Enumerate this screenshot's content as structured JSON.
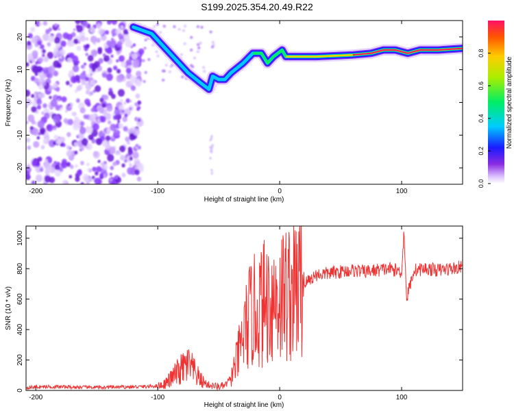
{
  "title": "S199.2025.354.20.49.R22",
  "colors": {
    "snr_line": "#ee3333",
    "axis": "#000000"
  },
  "chart_data": [
    {
      "type": "heatmap",
      "title": "S199.2025.354.20.49.R22",
      "xlabel": "Height of straight line (km)",
      "ylabel": "Frequency (Hz)",
      "xlim": [
        -208,
        150
      ],
      "ylim": [
        -25,
        25
      ],
      "x_ticks": [
        -200,
        -100,
        0,
        100
      ],
      "y_ticks": [
        -20,
        -10,
        0,
        10,
        20
      ],
      "colorbar": {
        "label": "Normalized spectral amplitude",
        "range": [
          0,
          1
        ],
        "ticks": [
          0.0,
          0.2,
          0.4,
          0.6,
          0.8
        ]
      },
      "ridge": [
        {
          "x": -120,
          "f": 23
        },
        {
          "x": -105,
          "f": 21
        },
        {
          "x": -95,
          "f": 17
        },
        {
          "x": -85,
          "f": 13
        },
        {
          "x": -75,
          "f": 9
        },
        {
          "x": -65,
          "f": 6
        },
        {
          "x": -58,
          "f": 4
        },
        {
          "x": -55,
          "f": 8
        },
        {
          "x": -50,
          "f": 7
        },
        {
          "x": -45,
          "f": 7
        },
        {
          "x": -40,
          "f": 9
        },
        {
          "x": -30,
          "f": 12
        },
        {
          "x": -22,
          "f": 15
        },
        {
          "x": -15,
          "f": 15
        },
        {
          "x": -10,
          "f": 12
        },
        {
          "x": -5,
          "f": 14
        },
        {
          "x": 2,
          "f": 16
        },
        {
          "x": 5,
          "f": 14
        },
        {
          "x": 30,
          "f": 14
        },
        {
          "x": 60,
          "f": 14.5
        },
        {
          "x": 75,
          "f": 15
        },
        {
          "x": 85,
          "f": 16
        },
        {
          "x": 95,
          "f": 16
        },
        {
          "x": 105,
          "f": 15
        },
        {
          "x": 115,
          "f": 16
        },
        {
          "x": 130,
          "f": 16
        },
        {
          "x": 150,
          "f": 16.5
        }
      ]
    },
    {
      "type": "line",
      "xlabel": "Height of straight line (km)",
      "ylabel": "SNR (10 * v/v)",
      "xlim": [
        -208,
        150
      ],
      "ylim": [
        0,
        1080
      ],
      "x_ticks": [
        -200,
        -100,
        0,
        100
      ],
      "y_ticks": [
        0,
        200,
        400,
        600,
        800,
        1000
      ],
      "series": [
        {
          "name": "SNR",
          "x": [
            -208,
            -190,
            -170,
            -150,
            -130,
            -110,
            -100,
            -95,
            -90,
            -85,
            -80,
            -75,
            -70,
            -65,
            -60,
            -55,
            -50,
            -45,
            -40,
            -35,
            -30,
            -25,
            -20,
            -15,
            -10,
            -5,
            0,
            5,
            10,
            15,
            20,
            25,
            30,
            40,
            50,
            60,
            70,
            80,
            90,
            100,
            102,
            104,
            110,
            120,
            130,
            140,
            150
          ],
          "values": [
            20,
            25,
            22,
            20,
            22,
            25,
            30,
            40,
            70,
            110,
            140,
            170,
            120,
            70,
            40,
            30,
            25,
            30,
            80,
            200,
            350,
            480,
            520,
            560,
            590,
            600,
            620,
            640,
            660,
            670,
            700,
            730,
            760,
            770,
            780,
            790,
            780,
            790,
            800,
            780,
            1050,
            600,
            790,
            800,
            790,
            800,
            810
          ]
        }
      ]
    }
  ]
}
